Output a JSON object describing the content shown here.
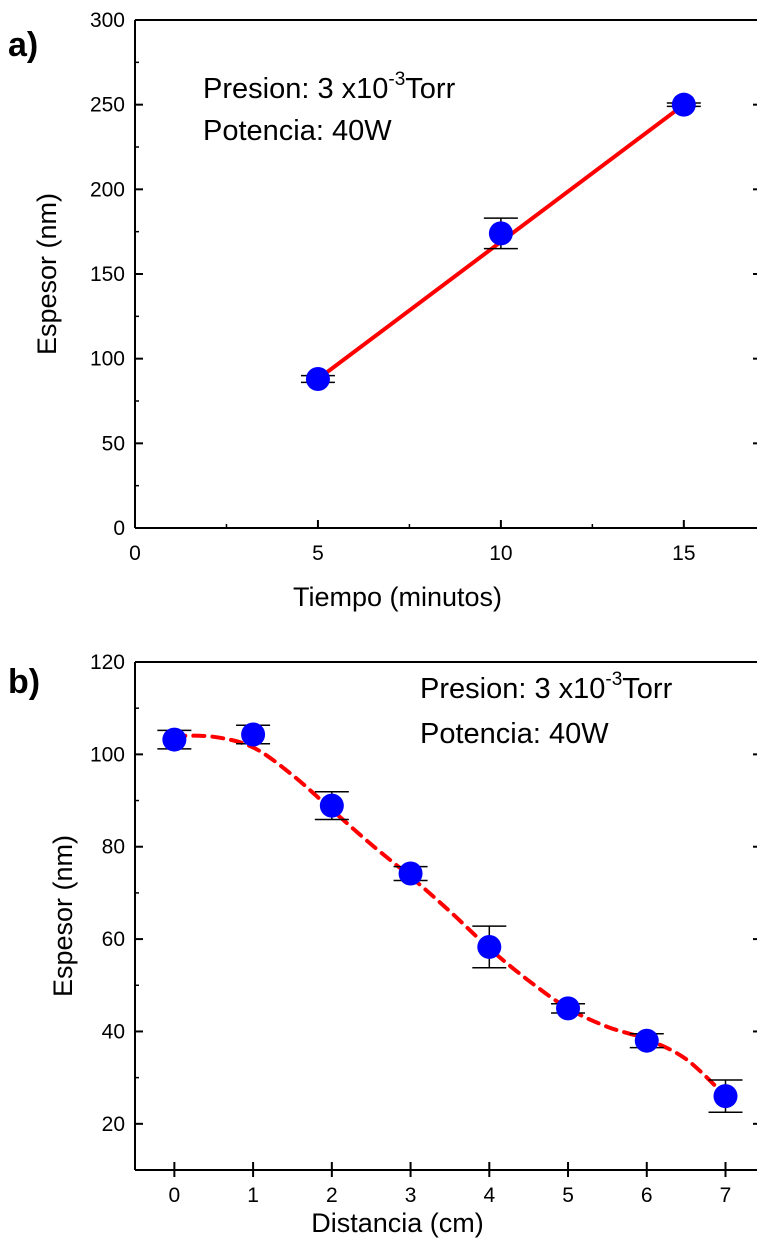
{
  "chart_data": [
    {
      "panel_label": "a)",
      "type": "scatter",
      "xlabel": "Tiempo (minutos)",
      "ylabel": "Espesor (nm)",
      "xlim": [
        0,
        17
      ],
      "ylim": [
        0,
        300
      ],
      "xticks": [
        0,
        5,
        10,
        15
      ],
      "yticks": [
        0,
        50,
        100,
        150,
        200,
        250,
        300
      ],
      "grid": false,
      "annotation": {
        "line1_prefix": "Presion: 3 x10",
        "line1_sup": "-3",
        "line1_suffix": "Torr",
        "line2": "Potencia: 40W"
      },
      "points": {
        "x": [
          5,
          10,
          15
        ],
        "y": [
          88,
          174,
          250
        ],
        "err": [
          2,
          9,
          1
        ],
        "color": "#0000ff"
      },
      "fit": {
        "type": "linear",
        "x": [
          5,
          15
        ],
        "y": [
          88,
          250
        ],
        "color": "#ff0000",
        "style": "solid"
      }
    },
    {
      "panel_label": "b)",
      "type": "scatter",
      "xlabel": "Distancia (cm)",
      "ylabel": "Espesor (nm)",
      "xlim": [
        -0.5,
        7.4
      ],
      "ylim": [
        10,
        120
      ],
      "xticks": [
        0,
        1,
        2,
        3,
        4,
        5,
        6,
        7
      ],
      "yticks": [
        20,
        40,
        60,
        80,
        100,
        120
      ],
      "grid": false,
      "annotation": {
        "line1_prefix": "Presion: 3 x10",
        "line1_sup": "-3",
        "line1_suffix": "Torr",
        "line2": "Potencia: 40W"
      },
      "points": {
        "x": [
          0,
          1,
          2,
          3,
          4,
          5,
          6,
          7
        ],
        "y": [
          103.2,
          104.3,
          88.9,
          74.2,
          58.3,
          45.0,
          38.0,
          26.0
        ],
        "err": [
          2.0,
          2.0,
          3.0,
          1.5,
          4.5,
          1.0,
          1.5,
          3.5
        ],
        "color": "#0000ff"
      },
      "fit": {
        "type": "smooth",
        "x": [
          0,
          0.5,
          1,
          1.5,
          2,
          2.5,
          3,
          3.5,
          4,
          4.5,
          5,
          5.5,
          6,
          6.5,
          7
        ],
        "y": [
          104.0,
          103.8,
          101.5,
          95.5,
          88.0,
          80.5,
          73.5,
          66.0,
          58.0,
          51.0,
          45.0,
          41.0,
          38.3,
          34.0,
          26.0
        ],
        "color": "#ff0000",
        "style": "dashed"
      }
    }
  ]
}
